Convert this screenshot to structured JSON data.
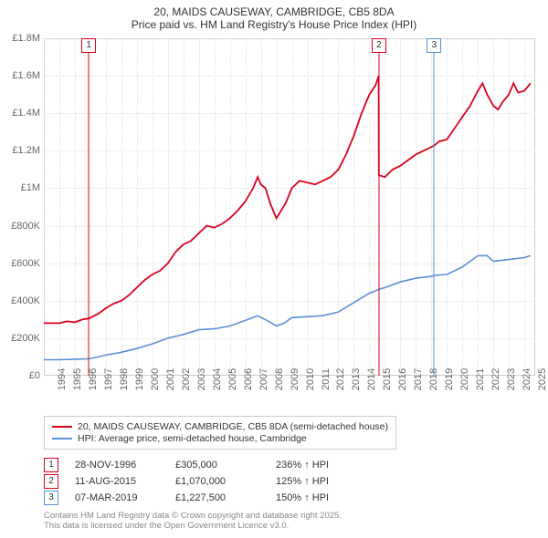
{
  "title_line1": "20, MAIDS CAUSEWAY, CAMBRIDGE, CB5 8DA",
  "title_line2": "Price paid vs. HM Land Registry's House Price Index (HPI)",
  "chart": {
    "type": "line",
    "background_color": "#ffffff",
    "grid_color": "#e0e0e0",
    "axis_color": "#cccccc",
    "text_color": "#666666",
    "label_fontsize": 11,
    "x_years": [
      1994,
      1995,
      1996,
      1997,
      1998,
      1999,
      2000,
      2001,
      2002,
      2003,
      2004,
      2005,
      2006,
      2007,
      2008,
      2009,
      2010,
      2011,
      2012,
      2013,
      2014,
      2015,
      2016,
      2017,
      2018,
      2019,
      2020,
      2021,
      2022,
      2023,
      2024,
      2025
    ],
    "xlim": [
      1994,
      2025.7
    ],
    "y_ticks": [
      0,
      200000,
      400000,
      600000,
      800000,
      1000000,
      1200000,
      1400000,
      1600000,
      1800000
    ],
    "y_tick_labels": [
      "£0",
      "£200K",
      "£400K",
      "£600K",
      "£800K",
      "£1M",
      "£1.2M",
      "£1.4M",
      "£1.6M",
      "£1.8M"
    ],
    "ylim": [
      0,
      1800000
    ],
    "series": [
      {
        "name": "property",
        "label": "20, MAIDS CAUSEWAY, CAMBRIDGE, CB5 8DA (semi-detached house)",
        "color": "#d9001b",
        "line_width": 1.8,
        "points": [
          [
            1994.0,
            280000
          ],
          [
            1995.0,
            280000
          ],
          [
            1995.5,
            290000
          ],
          [
            1996.0,
            285000
          ],
          [
            1996.5,
            300000
          ],
          [
            1996.9,
            305000
          ],
          [
            1997.5,
            330000
          ],
          [
            1998.0,
            360000
          ],
          [
            1998.5,
            385000
          ],
          [
            1999.0,
            400000
          ],
          [
            1999.5,
            430000
          ],
          [
            2000.0,
            470000
          ],
          [
            2000.5,
            510000
          ],
          [
            2001.0,
            540000
          ],
          [
            2001.5,
            560000
          ],
          [
            2002.0,
            600000
          ],
          [
            2002.5,
            660000
          ],
          [
            2003.0,
            700000
          ],
          [
            2003.5,
            720000
          ],
          [
            2004.0,
            760000
          ],
          [
            2004.5,
            800000
          ],
          [
            2005.0,
            790000
          ],
          [
            2005.5,
            810000
          ],
          [
            2006.0,
            840000
          ],
          [
            2006.5,
            880000
          ],
          [
            2007.0,
            930000
          ],
          [
            2007.5,
            1000000
          ],
          [
            2007.8,
            1060000
          ],
          [
            2008.0,
            1020000
          ],
          [
            2008.3,
            1000000
          ],
          [
            2008.6,
            920000
          ],
          [
            2009.0,
            840000
          ],
          [
            2009.3,
            880000
          ],
          [
            2009.6,
            920000
          ],
          [
            2010.0,
            1000000
          ],
          [
            2010.5,
            1040000
          ],
          [
            2011.0,
            1030000
          ],
          [
            2011.5,
            1020000
          ],
          [
            2012.0,
            1040000
          ],
          [
            2012.5,
            1060000
          ],
          [
            2013.0,
            1100000
          ],
          [
            2013.5,
            1180000
          ],
          [
            2014.0,
            1280000
          ],
          [
            2014.5,
            1400000
          ],
          [
            2015.0,
            1500000
          ],
          [
            2015.4,
            1550000
          ],
          [
            2015.6,
            1600000
          ],
          [
            2015.61,
            1070000
          ],
          [
            2016.0,
            1060000
          ],
          [
            2016.5,
            1100000
          ],
          [
            2017.0,
            1120000
          ],
          [
            2017.5,
            1150000
          ],
          [
            2018.0,
            1180000
          ],
          [
            2018.5,
            1200000
          ],
          [
            2019.0,
            1220000
          ],
          [
            2019.18,
            1227500
          ],
          [
            2019.5,
            1250000
          ],
          [
            2020.0,
            1260000
          ],
          [
            2020.5,
            1320000
          ],
          [
            2021.0,
            1380000
          ],
          [
            2021.5,
            1440000
          ],
          [
            2022.0,
            1520000
          ],
          [
            2022.3,
            1560000
          ],
          [
            2022.6,
            1500000
          ],
          [
            2023.0,
            1440000
          ],
          [
            2023.3,
            1420000
          ],
          [
            2023.6,
            1460000
          ],
          [
            2024.0,
            1500000
          ],
          [
            2024.3,
            1560000
          ],
          [
            2024.6,
            1510000
          ],
          [
            2025.0,
            1520000
          ],
          [
            2025.4,
            1560000
          ]
        ]
      },
      {
        "name": "hpi",
        "label": "HPI: Average price, semi-detached house, Cambridge",
        "color": "#5b8fd6",
        "line_width": 1.6,
        "points": [
          [
            1994.0,
            85000
          ],
          [
            1995.0,
            85000
          ],
          [
            1996.0,
            88000
          ],
          [
            1996.9,
            90000
          ],
          [
            1997.5,
            100000
          ],
          [
            1998.0,
            110000
          ],
          [
            1999.0,
            125000
          ],
          [
            2000.0,
            145000
          ],
          [
            2001.0,
            170000
          ],
          [
            2002.0,
            200000
          ],
          [
            2003.0,
            220000
          ],
          [
            2004.0,
            245000
          ],
          [
            2005.0,
            250000
          ],
          [
            2006.0,
            265000
          ],
          [
            2007.0,
            295000
          ],
          [
            2007.8,
            320000
          ],
          [
            2008.5,
            290000
          ],
          [
            2009.0,
            265000
          ],
          [
            2009.5,
            280000
          ],
          [
            2010.0,
            310000
          ],
          [
            2011.0,
            315000
          ],
          [
            2012.0,
            320000
          ],
          [
            2013.0,
            340000
          ],
          [
            2014.0,
            390000
          ],
          [
            2015.0,
            440000
          ],
          [
            2015.61,
            460000
          ],
          [
            2016.0,
            470000
          ],
          [
            2017.0,
            500000
          ],
          [
            2018.0,
            520000
          ],
          [
            2019.0,
            530000
          ],
          [
            2019.18,
            535000
          ],
          [
            2020.0,
            540000
          ],
          [
            2021.0,
            580000
          ],
          [
            2022.0,
            640000
          ],
          [
            2022.6,
            640000
          ],
          [
            2023.0,
            610000
          ],
          [
            2024.0,
            620000
          ],
          [
            2025.0,
            630000
          ],
          [
            2025.4,
            640000
          ]
        ]
      }
    ],
    "sale_markers": [
      {
        "n": "1",
        "x": 1996.9,
        "color": "#d9001b"
      },
      {
        "n": "2",
        "x": 2015.61,
        "color": "#d9001b"
      },
      {
        "n": "3",
        "x": 2019.18,
        "color": "#5b8fd6"
      }
    ]
  },
  "legend": {
    "items": [
      {
        "color": "#d9001b",
        "label": "20, MAIDS CAUSEWAY, CAMBRIDGE, CB5 8DA (semi-detached house)"
      },
      {
        "color": "#5b8fd6",
        "label": "HPI: Average price, semi-detached house, Cambridge"
      }
    ]
  },
  "sales": [
    {
      "n": "1",
      "color": "#d9001b",
      "date": "28-NOV-1996",
      "price": "£305,000",
      "hpi": "236% ↑ HPI"
    },
    {
      "n": "2",
      "color": "#d9001b",
      "date": "11-AUG-2015",
      "price": "£1,070,000",
      "hpi": "125% ↑ HPI"
    },
    {
      "n": "3",
      "color": "#5b8fd6",
      "date": "07-MAR-2019",
      "price": "£1,227,500",
      "hpi": "150% ↑ HPI"
    }
  ],
  "footer": {
    "line1": "Contains HM Land Registry data © Crown copyright and database right 2025.",
    "line2": "This data is licensed under the Open Government Licence v3.0."
  }
}
